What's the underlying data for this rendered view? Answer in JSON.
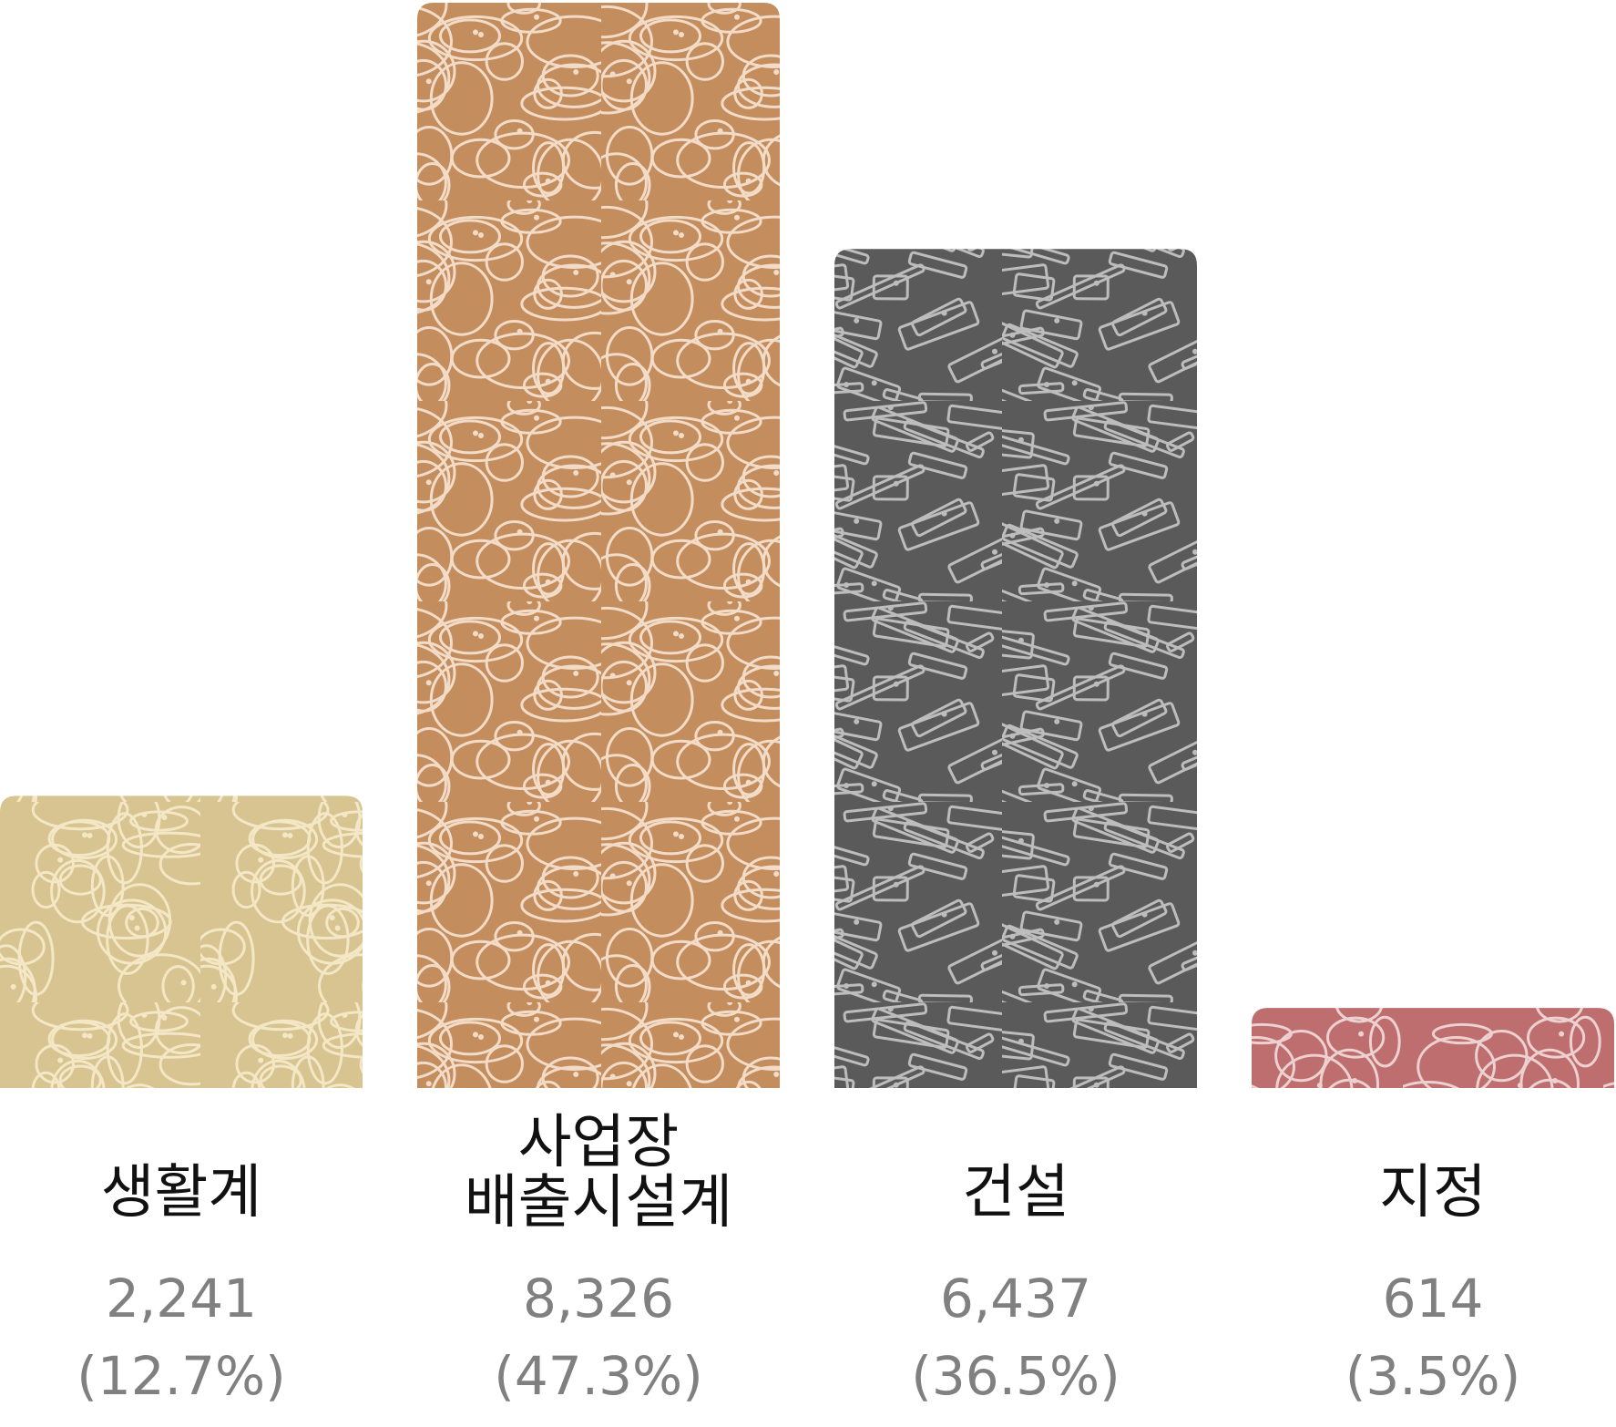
{
  "chart_data": {
    "type": "bar",
    "categories": [
      [
        "생활계"
      ],
      [
        "사업장",
        "배출시설계"
      ],
      [
        "건설"
      ],
      [
        "지정"
      ]
    ],
    "values": [
      2241,
      8326,
      6437,
      614
    ],
    "value_labels": [
      "2,241",
      "8,326",
      "6,437",
      "614"
    ],
    "percent_labels": [
      "(12.7%)",
      "(47.3%)",
      "(36.5%)",
      "(3.5%)"
    ],
    "colors": [
      "#D8C490",
      "#C48D5E",
      "#5A5A5A",
      "#BE6E6E"
    ],
    "pattern_colors": [
      "#F3E7C6",
      "#F2DCC8",
      "#BDBDBD",
      "#EDD0D0"
    ],
    "ylim": [
      0,
      8326
    ],
    "grid": false,
    "legend": "none"
  }
}
